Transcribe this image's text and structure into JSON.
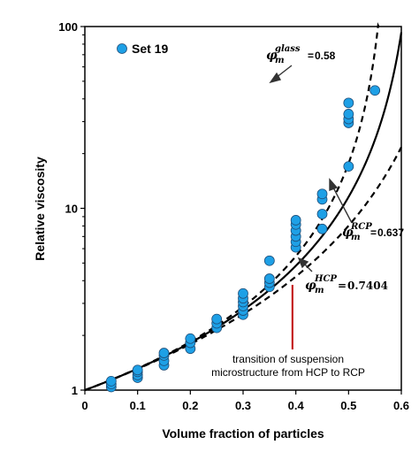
{
  "chart_data": {
    "type": "scatter",
    "xlabel": "Volume fraction of particles",
    "ylabel": "Relative viscosity",
    "xlim": [
      0,
      0.6
    ],
    "ylim": [
      1,
      100
    ],
    "y_scale": "log",
    "x_ticks": [
      "0",
      "0.1",
      "0.2",
      "0.3",
      "0.4",
      "0.5",
      "0.6"
    ],
    "y_ticks": [
      "1",
      "10",
      "100"
    ],
    "grid": false,
    "legend_position": "top-left",
    "series": [
      {
        "name": "Set 19",
        "color": "#1ea0e6",
        "points": [
          [
            0.05,
            1.04
          ],
          [
            0.05,
            1.08
          ],
          [
            0.05,
            1.12
          ],
          [
            0.1,
            1.17
          ],
          [
            0.1,
            1.21
          ],
          [
            0.1,
            1.26
          ],
          [
            0.1,
            1.29
          ],
          [
            0.15,
            1.37
          ],
          [
            0.15,
            1.45
          ],
          [
            0.15,
            1.55
          ],
          [
            0.15,
            1.6
          ],
          [
            0.2,
            1.69
          ],
          [
            0.2,
            1.82
          ],
          [
            0.2,
            1.92
          ],
          [
            0.25,
            2.2
          ],
          [
            0.25,
            2.33
          ],
          [
            0.25,
            2.46
          ],
          [
            0.3,
            2.6
          ],
          [
            0.3,
            2.74
          ],
          [
            0.3,
            2.9
          ],
          [
            0.3,
            3.05
          ],
          [
            0.3,
            3.2
          ],
          [
            0.3,
            3.4
          ],
          [
            0.35,
            3.7
          ],
          [
            0.35,
            3.9
          ],
          [
            0.35,
            4.1
          ],
          [
            0.35,
            5.15
          ],
          [
            0.4,
            6.1
          ],
          [
            0.4,
            6.55
          ],
          [
            0.4,
            7.0
          ],
          [
            0.4,
            7.55
          ],
          [
            0.4,
            8.15
          ],
          [
            0.4,
            8.6
          ],
          [
            0.45,
            7.7
          ],
          [
            0.45,
            9.3
          ],
          [
            0.45,
            11.2
          ],
          [
            0.45,
            12.0
          ],
          [
            0.5,
            17.0
          ],
          [
            0.5,
            29.5
          ],
          [
            0.5,
            31.0
          ],
          [
            0.5,
            33.0
          ],
          [
            0.5,
            38.0
          ],
          [
            0.55,
            44.5
          ]
        ]
      }
    ],
    "curves": [
      {
        "label": "0.58",
        "sup": "glass",
        "phi_m": 0.58,
        "style": "dashed"
      },
      {
        "label": "0.637",
        "sup": "RCP",
        "phi_m": 0.637,
        "style": "solid"
      },
      {
        "label": "0.7404",
        "sup": "HCP",
        "phi_m": 0.7404,
        "style": "dashed"
      }
    ],
    "annotation": {
      "text_line1": "transition of suspension",
      "text_line2": "microstructure from HCP to RCP",
      "x": 0.35,
      "color": "#c00000"
    },
    "phi_symbol": "φ",
    "phi_sub": "m",
    "eq": "="
  }
}
